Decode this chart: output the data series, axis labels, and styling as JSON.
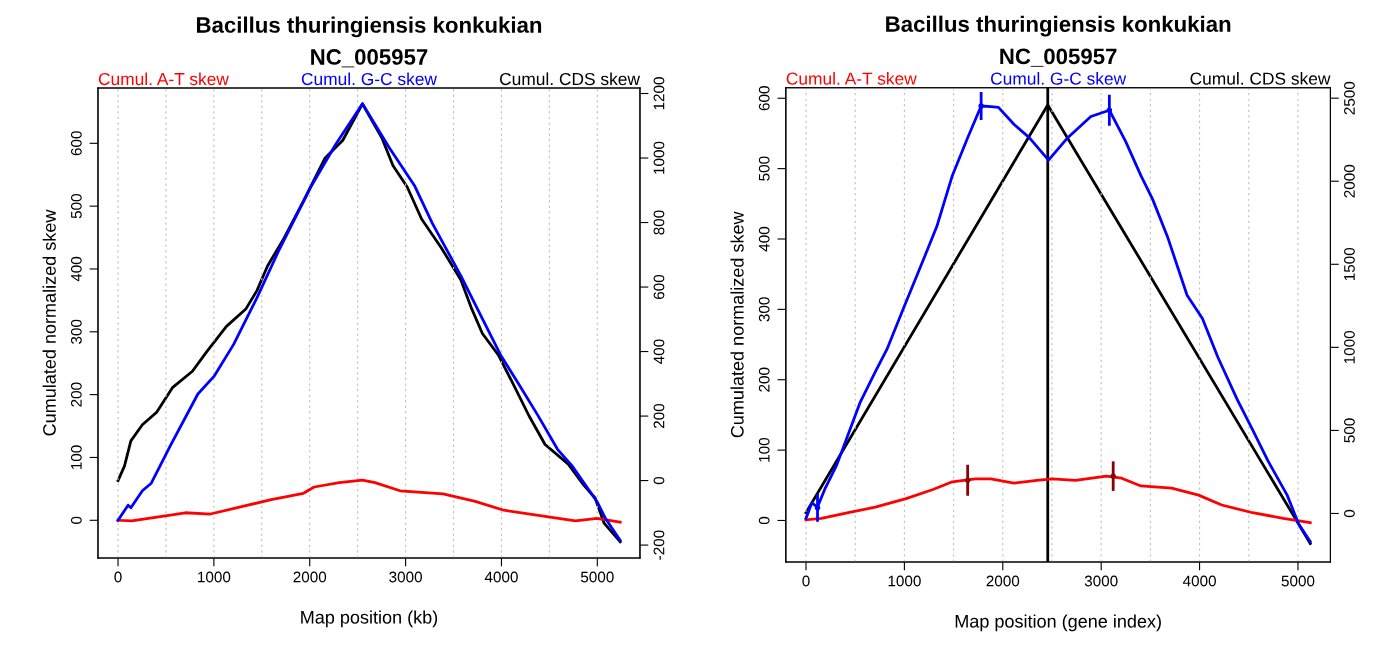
{
  "chart_data": [
    {
      "type": "line",
      "title": "Bacillus thuringiensis konkukian",
      "subtitle": "NC_005957",
      "xlabel": "Map position (kb)",
      "ylabel": "Cumulated normalized skew",
      "legend": "top",
      "grid": "x",
      "xlim": [
        -209,
        5445
      ],
      "xticks": [
        0,
        {
          "value": 500,
          "label": null
        },
        1000,
        {
          "value": 1500,
          "label": null
        },
        2000,
        {
          "value": 2500,
          "label": null
        },
        3000,
        {
          "value": 3500,
          "label": null
        },
        4000,
        {
          "value": 4500,
          "label": null
        },
        5000
      ],
      "ylim": [
        -60,
        688
      ],
      "yticks": [
        0,
        100,
        200,
        300,
        400,
        500,
        600
      ],
      "y2lim": [
        -240,
        1217
      ],
      "y2ticks": [
        {
          "value": -200,
          "label": "-200"
        },
        0,
        200,
        400,
        600,
        800,
        1000,
        1200
      ],
      "series": [
        {
          "name": "Cumul. A-T skew",
          "color": "#ff0000",
          "x": [
            0,
            142,
            441,
            702,
            963,
            1299,
            1598,
            1934,
            2046,
            2308,
            2550,
            2681,
            2942,
            3391,
            3727,
            4025,
            4473,
            4772,
            4996,
            5239
          ],
          "values": [
            0,
            -1,
            6,
            12,
            10,
            22,
            33,
            43,
            53,
            60,
            64,
            60,
            47,
            42,
            30,
            16,
            6,
            -1,
            3,
            -3
          ]
        },
        {
          "name": "Cumul. G-C skew",
          "color": "#0000ff",
          "x": [
            0,
            105,
            134,
            254,
            347,
            553,
            833,
            1001,
            1206,
            1449,
            1673,
            2009,
            2270,
            2550,
            2830,
            3092,
            3278,
            3577,
            3764,
            3988,
            4175,
            4380,
            4585,
            4735,
            4996,
            5089,
            5239
          ],
          "values": [
            0,
            24,
            20,
            47,
            59,
            121,
            201,
            229,
            280,
            354,
            428,
            530,
            598,
            663,
            593,
            533,
            473,
            389,
            332,
            264,
            218,
            167,
            113,
            87,
            30,
            2,
            -32
          ]
        },
        {
          "name": "Cumul. CDS skew",
          "color": "#000000",
          "axis": "y2",
          "x": [
            0,
            67,
            134,
            254,
            403,
            571,
            776,
            926,
            1131,
            1336,
            1449,
            1561,
            1729,
            1934,
            2158,
            2345,
            2550,
            2756,
            2868,
            3017,
            3167,
            3372,
            3577,
            3689,
            3801,
            3969,
            4119,
            4287,
            4455,
            4697,
            4847,
            4977,
            5071,
            5239
          ],
          "values": [
            0,
            45,
            123,
            173,
            212,
            289,
            339,
            400,
            478,
            533,
            589,
            666,
            750,
            866,
            999,
            1055,
            1168,
            1060,
            977,
            910,
            811,
            722,
            622,
            533,
            456,
            389,
            301,
            201,
            112,
            51,
            -10,
            -54,
            -132,
            -190
          ]
        }
      ]
    },
    {
      "type": "line",
      "title": "Bacillus thuringiensis konkukian",
      "subtitle": "NC_005957",
      "xlabel": "Map position (gene index)",
      "ylabel": "Cumulated normalized skew",
      "legend": "top",
      "grid": "x",
      "xlim": [
        -205,
        5330
      ],
      "xticks": [
        0,
        {
          "value": 500,
          "label": null
        },
        1000,
        {
          "value": 1500,
          "label": null
        },
        2000,
        {
          "value": 2500,
          "label": null
        },
        3000,
        {
          "value": 3500,
          "label": null
        },
        4000,
        {
          "value": 4500,
          "label": null
        },
        5000
      ],
      "ylim": [
        -59,
        615
      ],
      "yticks": [
        0,
        100,
        200,
        300,
        400,
        500,
        600
      ],
      "y2lim": [
        -292,
        2563
      ],
      "y2ticks": [
        0,
        500,
        1000,
        1500,
        2000,
        2500
      ],
      "ref_lines": [
        {
          "axis": "x",
          "value": 2457,
          "color": "#000000"
        }
      ],
      "series": [
        {
          "name": "Cumul. A-T skew",
          "color": "#ff0000",
          "x": [
            0,
            156,
            430,
            704,
            1017,
            1291,
            1487,
            1721,
            1878,
            2113,
            2347,
            2504,
            2739,
            3052,
            3208,
            3404,
            3717,
            3990,
            4225,
            4538,
            4851,
            5125
          ],
          "values": [
            1,
            3,
            11,
            19,
            31,
            44,
            55,
            59,
            59,
            53,
            57,
            59,
            57,
            63,
            60,
            49,
            46,
            36,
            22,
            11,
            3,
            -3
          ]
        },
        {
          "name": "Cumul. G-C skew",
          "color": "#0000ff",
          "x": [
            0,
            59,
            117,
            196,
            313,
            430,
            548,
            704,
            822,
            998,
            1174,
            1330,
            1487,
            1643,
            1780,
            1878,
            1956,
            2113,
            2269,
            2465,
            2660,
            2895,
            3083,
            3247,
            3404,
            3521,
            3677,
            3873,
            4029,
            4186,
            4382,
            4538,
            4694,
            4890,
            5007,
            5125
          ],
          "values": [
            3,
            25,
            19,
            46,
            79,
            123,
            167,
            211,
            243,
            304,
            364,
            418,
            490,
            544,
            589,
            588,
            587,
            563,
            544,
            512,
            544,
            574,
            583,
            539,
            490,
            457,
            402,
            320,
            287,
            232,
            172,
            129,
            85,
            36,
            -5,
            -30
          ]
        },
        {
          "name": "Cumul. CDS skew",
          "color": "#000000",
          "axis": "y2",
          "x": [
            0,
            2457,
            5125
          ],
          "values": [
            5,
            2459,
            -181
          ]
        },
        {
          "type": "scatter",
          "color": "#0000ff",
          "x": [
            117,
            1780,
            3083
          ],
          "values": [
            18,
            589,
            583
          ],
          "errors": [
            20,
            20,
            22
          ]
        },
        {
          "type": "scatter",
          "color": "#8b0000",
          "x": [
            1643,
            3122
          ],
          "values": [
            57,
            63
          ],
          "errors": [
            22,
            21
          ]
        }
      ]
    }
  ]
}
